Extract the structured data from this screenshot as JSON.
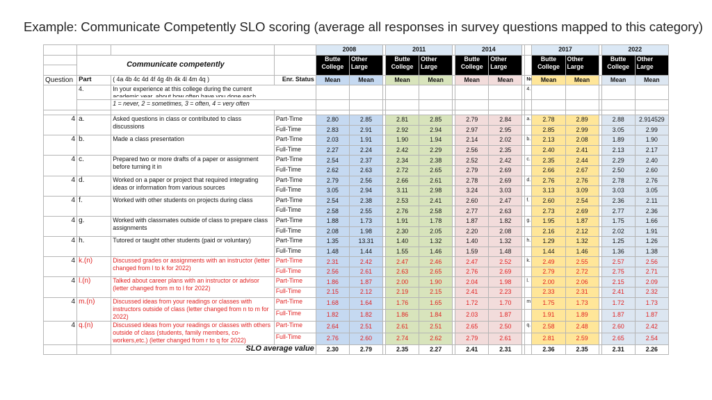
{
  "title": "Example: Communicate Competently SLO scoring (average all responses in survey questions mapped to this category)",
  "header": {
    "years": [
      "2008",
      "2011",
      "2014",
      "2017",
      "2022"
    ],
    "category_title": "Communicate competently",
    "butte_label": "Butte",
    "other_label": "Other",
    "college_label": "College",
    "large_label": "Large",
    "mean_label": "Mean",
    "question_label": "Question",
    "part_label": "Part",
    "part_list": "( 4a 4b 4c 4d 4f 4g 4h 4k 4l 4m 4q )",
    "enr_label": "Enr. Status",
    "nu_label": "Nu"
  },
  "intro": {
    "qnum": "4.",
    "line1": "In your experience at this college during the current",
    "line2": "academic year, about how often have you done each",
    "scale": "1 = never, 2 = sometimes, 3 = often, 4 = very often",
    "qnum_right": "4."
  },
  "questions": [
    {
      "num": "4",
      "part": "a.",
      "right_part": "a.",
      "red": false,
      "text": "Asked questions in class or contributed to class discussions",
      "rows": [
        {
          "status": "Part-Time",
          "vals": [
            "2.80",
            "2.85",
            "2.81",
            "2.85",
            "2.79",
            "2.84",
            "2.78",
            "2.89",
            "2.88",
            "2.914529"
          ]
        },
        {
          "status": "Full-Time",
          "vals": [
            "2.83",
            "2.91",
            "2.92",
            "2.94",
            "2.97",
            "2.95",
            "2.85",
            "2.99",
            "3.05",
            "2.99"
          ]
        }
      ]
    },
    {
      "num": "4",
      "part": "b.",
      "right_part": "b.",
      "red": false,
      "text": "Made a class presentation",
      "rows": [
        {
          "status": "Part-Time",
          "vals": [
            "2.03",
            "1.91",
            "1.90",
            "1.94",
            "2.14",
            "2.02",
            "2.13",
            "2.08",
            "1.89",
            "1.90"
          ]
        },
        {
          "status": "Full-Time",
          "vals": [
            "2.27",
            "2.24",
            "2.42",
            "2.29",
            "2.56",
            "2.35",
            "2.40",
            "2.41",
            "2.13",
            "2.17"
          ]
        }
      ]
    },
    {
      "num": "4",
      "part": "c.",
      "right_part": "c.",
      "red": false,
      "text": "Prepared two or more drafts of a paper or assignment before turning it in",
      "rows": [
        {
          "status": "Part-Time",
          "vals": [
            "2.54",
            "2.37",
            "2.34",
            "2.38",
            "2.52",
            "2.42",
            "2.35",
            "2.44",
            "2.29",
            "2.40"
          ]
        },
        {
          "status": "Full-Time",
          "vals": [
            "2.62",
            "2.63",
            "2.72",
            "2.65",
            "2.79",
            "2.69",
            "2.66",
            "2.67",
            "2.50",
            "2.60"
          ]
        }
      ]
    },
    {
      "num": "4",
      "part": "d.",
      "right_part": "d.",
      "red": false,
      "text": "Worked on a paper or project that required integrating ideas or information from various sources",
      "rows": [
        {
          "status": "Part-Time",
          "vals": [
            "2.79",
            "2.56",
            "2.66",
            "2.61",
            "2.78",
            "2.69",
            "2.76",
            "2.76",
            "2.78",
            "2.76"
          ]
        },
        {
          "status": "Full-Time",
          "vals": [
            "3.05",
            "2.94",
            "3.11",
            "2.98",
            "3.24",
            "3.03",
            "3.13",
            "3.09",
            "3.03",
            "3.05"
          ]
        }
      ]
    },
    {
      "num": "4",
      "part": "f.",
      "right_part": "f.",
      "red": false,
      "text": "Worked with other students on projects during class",
      "rows": [
        {
          "status": "Part-Time",
          "vals": [
            "2.54",
            "2.38",
            "2.53",
            "2.41",
            "2.60",
            "2.47",
            "2.60",
            "2.54",
            "2.36",
            "2.11"
          ]
        },
        {
          "status": "Full-Time",
          "vals": [
            "2.58",
            "2.55",
            "2.76",
            "2.58",
            "2.77",
            "2.63",
            "2.73",
            "2.69",
            "2.77",
            "2.36"
          ]
        }
      ]
    },
    {
      "num": "4",
      "part": "g.",
      "right_part": "g.",
      "red": false,
      "text": "Worked with classmates outside of class to prepare class assignments",
      "rows": [
        {
          "status": "Part-Time",
          "vals": [
            "1.88",
            "1.73",
            "1.91",
            "1.78",
            "1.87",
            "1.82",
            "1.95",
            "1.87",
            "1.75",
            "1.66"
          ]
        },
        {
          "status": "Full-Time",
          "vals": [
            "2.08",
            "1.98",
            "2.30",
            "2.05",
            "2.20",
            "2.08",
            "2.16",
            "2.12",
            "2.02",
            "1.91"
          ]
        }
      ]
    },
    {
      "num": "4",
      "part": "h.",
      "right_part": "h.",
      "red": false,
      "text": "Tutored or taught other students (paid or voluntary)",
      "rows": [
        {
          "status": "Part-Time",
          "vals": [
            "1.35",
            "13.31",
            "1.40",
            "1.32",
            "1.40",
            "1.32",
            "1.29",
            "1.32",
            "1.25",
            "1.26"
          ]
        },
        {
          "status": "Full-Time",
          "vals": [
            "1.48",
            "1.44",
            "1.55",
            "1.46",
            "1.59",
            "1.48",
            "1.44",
            "1.46",
            "1.36",
            "1.38"
          ]
        }
      ]
    },
    {
      "num": "4",
      "part": "k.(n)",
      "right_part": "k.",
      "red": true,
      "text": "Discussed grades or assignments with an instructor (letter changed from l to k for 2022)",
      "rows": [
        {
          "status": "Part-Time",
          "vals": [
            "2.31",
            "2.42",
            "2.47",
            "2.46",
            "2.47",
            "2.52",
            "2.49",
            "2.55",
            "2.57",
            "2.56"
          ]
        },
        {
          "status": "Full-Time",
          "vals": [
            "2.56",
            "2.61",
            "2.63",
            "2.65",
            "2.76",
            "2.69",
            "2.79",
            "2.72",
            "2.75",
            "2.71"
          ]
        }
      ]
    },
    {
      "num": "4",
      "part": "l.(n)",
      "right_part": "l.",
      "red": true,
      "text": "Talked about career plans with an instructor or advisor (letter changed from m to l for 2022)",
      "rows": [
        {
          "status": "Part-Time",
          "vals": [
            "1.86",
            "1.87",
            "2.00",
            "1.90",
            "2.04",
            "1.98",
            "2.00",
            "2.06",
            "2.15",
            "2.09"
          ]
        },
        {
          "status": "Full-Time",
          "vals": [
            "2.15",
            "2.12",
            "2.19",
            "2.15",
            "2.41",
            "2.23",
            "2.33",
            "2.31",
            "2.41",
            "2.32"
          ]
        }
      ]
    },
    {
      "num": "4",
      "part": "m.(n)",
      "right_part": "m",
      "red": true,
      "text": "Discussed ideas from your readings or classes with instructors outside of class (letter changed from n to m for 2022)",
      "rows": [
        {
          "status": "Part-Time",
          "vals": [
            "1.68",
            "1.64",
            "1.76",
            "1.65",
            "1.72",
            "1.70",
            "1.75",
            "1.73",
            "1.72",
            "1.73"
          ]
        },
        {
          "status": "Full-Time",
          "vals": [
            "1.82",
            "1.82",
            "1.86",
            "1.84",
            "2.03",
            "1.87",
            "1.91",
            "1.89",
            "1.87",
            "1.87"
          ]
        }
      ]
    },
    {
      "num": "4",
      "part": "q.(n)",
      "right_part": "q.",
      "red": true,
      "text": "Discussed ideas from your readings or classes with others outside of class (students, family members, co-workers,etc.) (letter changed from r to q for 2022)",
      "rows": [
        {
          "status": "Part-Time",
          "vals": [
            "2.64",
            "2.51",
            "2.61",
            "2.51",
            "2.65",
            "2.50",
            "2.58",
            "2.48",
            "2.60",
            "2.42"
          ]
        },
        {
          "status": "Full-Time",
          "vals": [
            "2.76",
            "2.60",
            "2.74",
            "2.62",
            "2.79",
            "2.61",
            "2.81",
            "2.59",
            "2.65",
            "2.54"
          ]
        }
      ]
    }
  ],
  "average": {
    "label": "SLO average value",
    "vals": [
      "2.30",
      "2.79",
      "2.35",
      "2.27",
      "2.41",
      "2.31",
      "2.36",
      "2.35",
      "2.31",
      "2.26"
    ]
  }
}
